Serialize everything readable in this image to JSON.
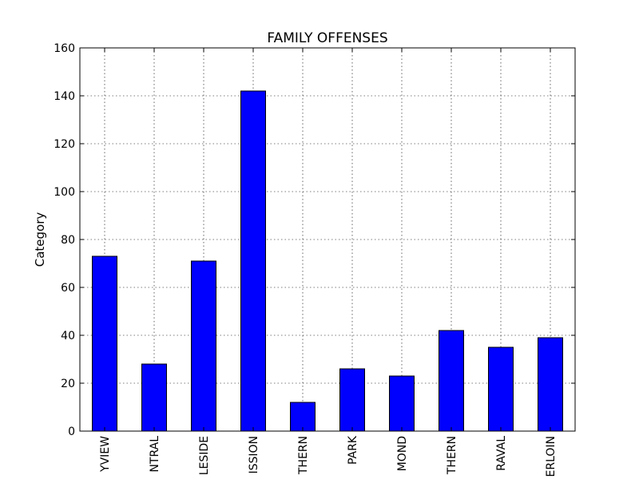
{
  "chart_data": {
    "type": "bar",
    "title": "FAMILY OFFENSES",
    "xlabel": "",
    "ylabel": "Category",
    "ylim": [
      0,
      160
    ],
    "yticks": [
      0,
      20,
      40,
      60,
      80,
      100,
      120,
      140,
      160
    ],
    "grid": true,
    "categories": [
      "BAYVIEW",
      "CENTRAL",
      "INGLESIDE",
      "MISSION",
      "NORTHERN",
      "PARK",
      "RICHMOND",
      "SOUTHERN",
      "TARAVAL",
      "TENDERLOIN"
    ],
    "category_labels_visible": [
      "YVIEW",
      "NTRAL",
      "LESIDE",
      "ISSION",
      "THERN",
      "PARK",
      "MOND",
      "THERN",
      "RAVAL",
      "ERLOIN"
    ],
    "values": [
      73,
      28,
      71,
      142,
      12,
      26,
      23,
      42,
      35,
      39
    ],
    "bar_color": "#0000ff"
  }
}
